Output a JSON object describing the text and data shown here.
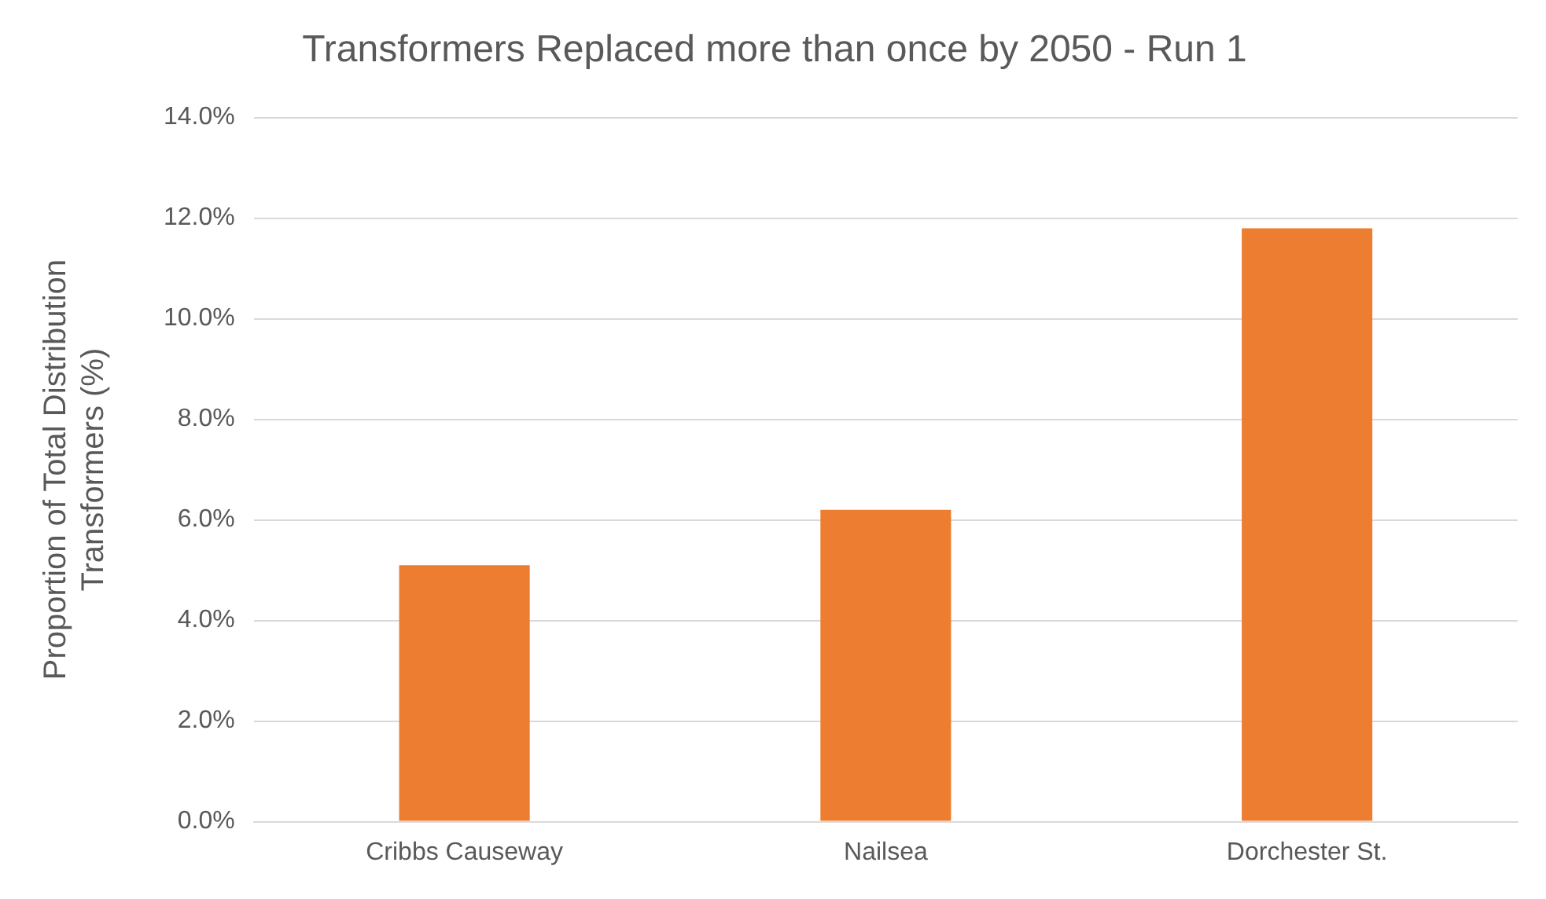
{
  "chart_data": {
    "type": "bar",
    "title": "Transformers Replaced more than once by 2050 - Run 1",
    "ylabel": "Proportion of Total Distribution Transformers (%)",
    "categories": [
      "Cribbs Causeway",
      "Nailsea",
      "Dorchester St."
    ],
    "values": [
      5.1,
      6.2,
      11.8
    ],
    "color": "#ed7d31",
    "ylim": [
      0,
      14
    ],
    "yticks": [
      {
        "value": 0,
        "label": "0.0%"
      },
      {
        "value": 2,
        "label": "2.0%"
      },
      {
        "value": 4,
        "label": "4.0%"
      },
      {
        "value": 6,
        "label": "6.0%"
      },
      {
        "value": 8,
        "label": "8.0%"
      },
      {
        "value": 10,
        "label": "10.0%"
      },
      {
        "value": 12,
        "label": "12.0%"
      },
      {
        "value": 14,
        "label": "14.0%"
      }
    ],
    "grid": "y"
  }
}
